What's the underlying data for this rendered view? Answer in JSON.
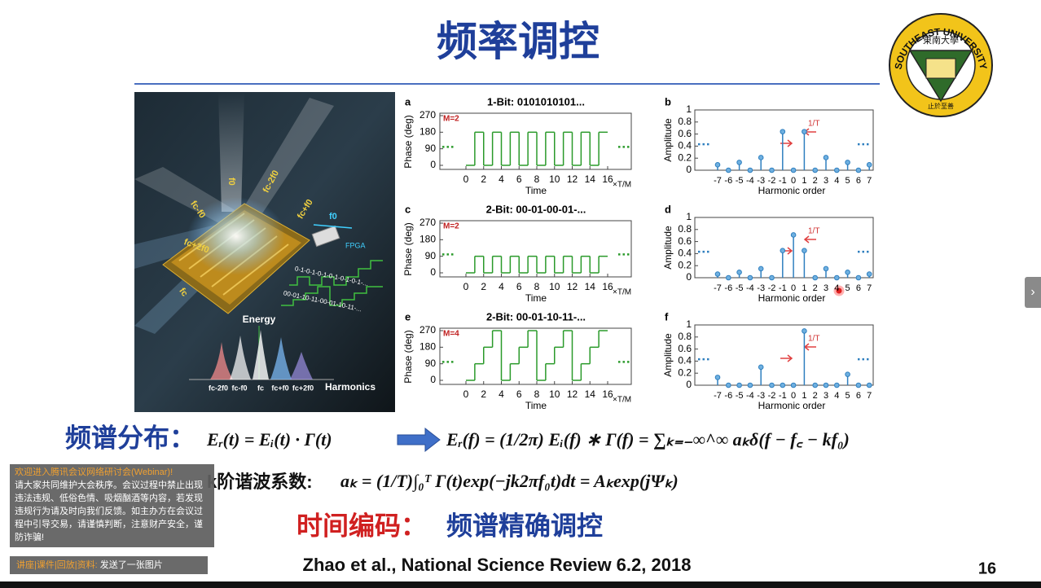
{
  "slide": {
    "title": "频率调控",
    "logo": {
      "ring_text": "SOUTHEAST UNIVERSITY",
      "seal": "東南大學",
      "motto": "止於至善"
    },
    "figure": {
      "illustration": {
        "beam_labels": [
          "f0",
          "fc-2f0",
          "fc-f0",
          "fc+f0",
          "fc+2f0",
          "fc"
        ],
        "modulation": "f0",
        "device": "FPGA",
        "codes": [
          "0-1-0-1-0-1-0-1-0-1-0-1-...",
          "00-01-10-11-00-01-10-11-..."
        ],
        "energy": "Energy",
        "harmonics": "Harmonics",
        "harmonic_labels": [
          "fc-2f0",
          "fc-f0",
          "fc",
          "fc+f0",
          "fc+2f0"
        ]
      },
      "phase_axis": {
        "ylabel": "Phase (deg)",
        "yticks": [
          0,
          90,
          180,
          270
        ],
        "xlabel": "Time",
        "xticks": [
          0,
          2,
          4,
          6,
          8,
          10,
          12,
          14,
          16
        ],
        "xunit": "×T/M"
      },
      "amp_axis": {
        "ylabel": "Amplitude",
        "yticks": [
          0,
          0.2,
          0.4,
          0.6,
          0.8,
          1
        ],
        "xlabel": "Harmonic order",
        "xticks": [
          -7,
          -6,
          -5,
          -4,
          -3,
          -2,
          -1,
          0,
          1,
          2,
          3,
          4,
          5,
          6,
          7
        ],
        "annotation": "1/T"
      },
      "phase_panels": [
        {
          "letter": "a",
          "title": "1-Bit: 0101010101...",
          "m": "M=2",
          "values": [
            0,
            180,
            0,
            180,
            0,
            180,
            0,
            180,
            0,
            180,
            0,
            180,
            0,
            180,
            0,
            180
          ]
        },
        {
          "letter": "c",
          "title": "2-Bit: 00-01-00-01-...",
          "m": "M=2",
          "values": [
            0,
            90,
            0,
            90,
            0,
            90,
            0,
            90,
            0,
            90,
            0,
            90,
            0,
            90,
            0,
            90
          ]
        },
        {
          "letter": "e",
          "title": "2-Bit: 00-01-10-11-...",
          "m": "M=4",
          "values": [
            0,
            90,
            180,
            270,
            0,
            90,
            180,
            270,
            0,
            90,
            180,
            270,
            0,
            90,
            180,
            270
          ]
        }
      ],
      "amp_panels": [
        {
          "letter": "b",
          "values": [
            0.09,
            0,
            0.13,
            0,
            0.21,
            0,
            0.64,
            0,
            0.64,
            0,
            0.21,
            0,
            0.13,
            0,
            0.09
          ]
        },
        {
          "letter": "d",
          "values": [
            0.06,
            0,
            0.09,
            0,
            0.15,
            0,
            0.45,
            0.71,
            0.45,
            0,
            0.15,
            0,
            0.09,
            0,
            0.06
          ]
        },
        {
          "letter": "f",
          "values": [
            0.13,
            0,
            0,
            0,
            0.3,
            0,
            0,
            0,
            0.9,
            0,
            0,
            0,
            0.18,
            0,
            0
          ]
        }
      ]
    },
    "formula1": {
      "label": "频谱分布：",
      "left": "Eᵣ(t) = Eᵢ(t) · Γ(t)",
      "right": "Eᵣ(f) = (1/2π) Eᵢ(f) ∗ Γ(f) = ∑ₖ₌₋∞^∞ aₖδ(f − f꜀ − kf₀)"
    },
    "formula2": {
      "label": "k阶谐波系数:",
      "expr": "aₖ = (1/T)∫₀ᵀ Γ(t)exp(−jk2πf₀t)dt = Aₖexp(jΨₖ)"
    },
    "summary": {
      "red": "时间编码：",
      "blue": "频谱精确调控"
    },
    "citation": "Zhao et al., National Science Review 6.2, 2018",
    "page": "16"
  },
  "chat": {
    "welcome": "欢迎进入腾讯会议网络研讨会(Webinar)!",
    "notice": "请大家共同维护大会秩序。会议过程中禁止出现违法违规、低俗色情、吸烟酗酒等内容，若发现违规行为请及时向我们反馈。如主办方在会议过程中引导交易，请谨慎判断，注意财产安全，谨防诈骗!",
    "sender": "讲座|课件|回放|资料:",
    "message": "发送了一张图片"
  }
}
